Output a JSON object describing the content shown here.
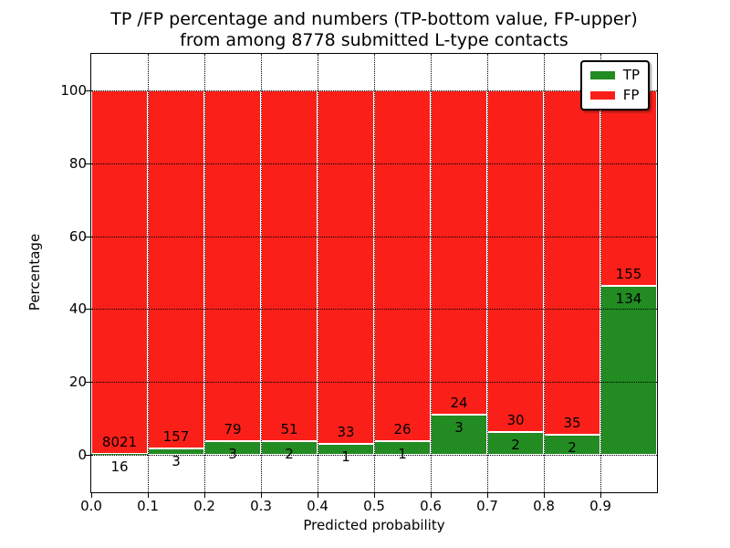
{
  "title": {
    "line1": "TP /FP percentage and numbers (TP-bottom value, FP-upper)",
    "line2": "from among 8778 submitted L-type contacts"
  },
  "axes": {
    "xlabel": "Predicted probability",
    "ylabel": "Percentage",
    "yticks": [
      0,
      20,
      40,
      60,
      80,
      100
    ],
    "xticks": [
      "0.0",
      "0.1",
      "0.2",
      "0.3",
      "0.4",
      "0.5",
      "0.6",
      "0.7",
      "0.8",
      "0.9"
    ]
  },
  "legend": {
    "items": [
      {
        "label": "TP",
        "color": "#228b22"
      },
      {
        "label": "FP",
        "color": "#fa2019"
      }
    ]
  },
  "chart_data": {
    "type": "bar",
    "stacked": true,
    "title": "TP /FP percentage and numbers (TP-bottom value, FP-upper) from among 8778 submitted L-type contacts",
    "xlabel": "Predicted probability",
    "ylabel": "Percentage",
    "bin_edges": [
      0.0,
      0.1,
      0.2,
      0.3,
      0.4,
      0.5,
      0.6,
      0.7,
      0.8,
      0.9,
      1.0
    ],
    "categories": [
      "0.0-0.1",
      "0.1-0.2",
      "0.2-0.3",
      "0.3-0.4",
      "0.4-0.5",
      "0.5-0.6",
      "0.6-0.7",
      "0.7-0.8",
      "0.8-0.9",
      "0.9-1.0"
    ],
    "series": [
      {
        "name": "TP",
        "counts": [
          16,
          3,
          3,
          2,
          1,
          1,
          3,
          2,
          2,
          134
        ]
      },
      {
        "name": "FP",
        "counts": [
          8021,
          157,
          79,
          51,
          33,
          26,
          24,
          30,
          35,
          155
        ]
      }
    ],
    "total_contacts": 8778,
    "unit": "percent of bin total; TP% + FP% stacked to 100",
    "ylim": [
      0,
      100
    ],
    "grid": true,
    "legend_position": "upper right",
    "colors": {
      "tp": "#228b22",
      "fp": "#fa2019"
    }
  }
}
